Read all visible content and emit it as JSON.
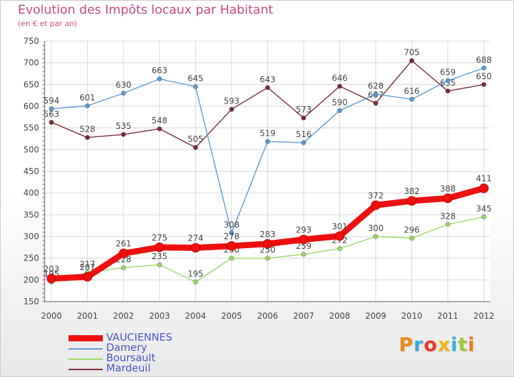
{
  "chart_data": {
    "type": "line",
    "title": "Evolution des Impôts locaux par Habitant",
    "subtitle": "(en € et par an)",
    "xlabel": "",
    "ylabel": "",
    "ylim": [
      150,
      750
    ],
    "yticks": [
      "150",
      "200",
      "250",
      "300",
      "350",
      "400",
      "450",
      "500",
      "550",
      "600",
      "650",
      "700",
      "750"
    ],
    "categories": [
      "2000",
      "2001",
      "2002",
      "2003",
      "2004",
      "2005",
      "2006",
      "2007",
      "2008",
      "2009",
      "2010",
      "2011",
      "2012"
    ],
    "grid": true,
    "legend_position": "bottom-left",
    "series": [
      {
        "name": "Mardeuil",
        "color": "#7a2a36",
        "values": [
          563,
          528,
          535,
          548,
          505,
          593,
          643,
          573,
          646,
          607,
          705,
          635,
          650
        ],
        "labels": [
          "563",
          "528",
          "535",
          "548",
          "505",
          "593",
          "643",
          "573",
          "646",
          "607",
          "705",
          "635",
          "650"
        ]
      },
      {
        "name": "Damery",
        "color": "#5b9ad4",
        "values": [
          594,
          601,
          630,
          663,
          645,
          308,
          519,
          516,
          590,
          628,
          616,
          659,
          688
        ],
        "labels": [
          "594",
          "601",
          "630",
          "663",
          "645",
          "308",
          "519",
          "516",
          "590",
          "628",
          "616",
          "659",
          "688"
        ]
      },
      {
        "name": "Boursault",
        "color": "#9ad868",
        "values": [
          195,
          217,
          228,
          235,
          195,
          250,
          250,
          259,
          272,
          300,
          296,
          328,
          345
        ],
        "labels": [
          "195",
          "217",
          "228",
          "235",
          "195",
          "250",
          "250",
          "259",
          "272",
          "300",
          "296",
          "328",
          "345"
        ]
      },
      {
        "name": "VAUCIENNES",
        "color": "#ee1010",
        "values": [
          203,
          207,
          261,
          275,
          274,
          278,
          283,
          293,
          301,
          372,
          382,
          388,
          411
        ],
        "labels": [
          "203",
          "207",
          "261",
          "275",
          "274",
          "278",
          "283",
          "293",
          "301",
          "372",
          "382",
          "388",
          "411"
        ]
      }
    ]
  },
  "legend": {
    "items": [
      "VAUCIENNES",
      "Damery",
      "Boursault",
      "Mardeuil"
    ]
  },
  "logo": {
    "letters": [
      "P",
      "r",
      "o",
      "x",
      "i",
      "t",
      "i"
    ],
    "colors": [
      "#f08a1a",
      "#38a7e0",
      "#e83a2a",
      "#f5b510",
      "#3ab0e0",
      "#9cc83a",
      "#f07a1a"
    ]
  }
}
